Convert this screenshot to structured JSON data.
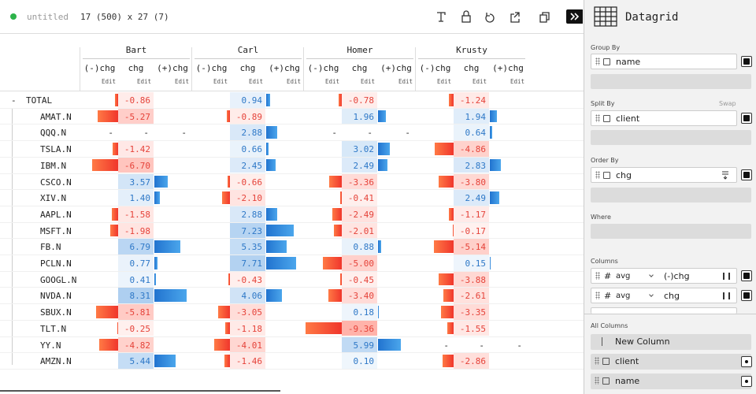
{
  "toolbar": {
    "status": "untitled",
    "dimensions": "17 (500) x 27 (7)"
  },
  "grid": {
    "groups": [
      "Bart",
      "Carl",
      "Homer",
      "Krusty"
    ],
    "subcolumns": [
      "(-)chg",
      "chg",
      "(+)chg"
    ],
    "edit_label": "Edit",
    "collapse_marker": "-",
    "empty_cell": "-",
    "rows": [
      {
        "name": "TOTAL",
        "values": [
          "-0.86",
          "0.94",
          "-0.78",
          "-1.24"
        ]
      },
      {
        "name": "AMAT.N",
        "values": [
          "-5.27",
          "-0.89",
          "1.96",
          "1.94"
        ]
      },
      {
        "name": "QQQ.N",
        "values": [
          null,
          "2.88",
          null,
          "0.64"
        ]
      },
      {
        "name": "TSLA.N",
        "values": [
          "-1.42",
          "0.66",
          "3.02",
          "-4.86"
        ]
      },
      {
        "name": "IBM.N",
        "values": [
          "-6.70",
          "2.45",
          "2.49",
          "2.83"
        ]
      },
      {
        "name": "CSCO.N",
        "values": [
          "3.57",
          "-0.66",
          "-3.36",
          "-3.80"
        ]
      },
      {
        "name": "XIV.N",
        "values": [
          "1.40",
          "-2.10",
          "-0.41",
          "2.49"
        ]
      },
      {
        "name": "AAPL.N",
        "values": [
          "-1.58",
          "2.88",
          "-2.49",
          "-1.17"
        ]
      },
      {
        "name": "MSFT.N",
        "values": [
          "-1.98",
          "7.23",
          "-2.01",
          "-0.17"
        ]
      },
      {
        "name": "FB.N",
        "values": [
          "6.79",
          "5.35",
          "0.88",
          "-5.14"
        ]
      },
      {
        "name": "PCLN.N",
        "values": [
          "0.77",
          "7.71",
          "-5.00",
          "0.15"
        ]
      },
      {
        "name": "GOOGL.N",
        "values": [
          "0.41",
          "-0.43",
          "-0.45",
          "-3.88"
        ]
      },
      {
        "name": "NVDA.N",
        "values": [
          "8.31",
          "4.06",
          "-3.40",
          "-2.61"
        ]
      },
      {
        "name": "SBUX.N",
        "values": [
          "-5.81",
          "-3.05",
          "0.18",
          "-3.35"
        ]
      },
      {
        "name": "TLT.N",
        "values": [
          "-0.25",
          "-1.18",
          "-9.36",
          "-1.55"
        ]
      },
      {
        "name": "YY.N",
        "values": [
          "-4.82",
          "-4.01",
          "5.99",
          null
        ]
      },
      {
        "name": "AMZN.N",
        "values": [
          "5.44",
          "-1.46",
          "0.10",
          "-2.86"
        ]
      }
    ]
  },
  "sidebar": {
    "title": "Datagrid",
    "group_by": {
      "label": "Group By",
      "items": [
        "name"
      ]
    },
    "split_by": {
      "label": "Split By",
      "action": "Swap",
      "items": [
        "client"
      ]
    },
    "order_by": {
      "label": "Order By",
      "items": [
        "chg"
      ]
    },
    "where": {
      "label": "Where"
    },
    "columns": {
      "label": "Columns",
      "items": [
        {
          "type": "#",
          "aggregate": "avg",
          "name": "(-)chg"
        },
        {
          "type": "#",
          "aggregate": "avg",
          "name": "chg"
        }
      ]
    },
    "all_columns": {
      "label": "All Columns",
      "new_column": "New Column",
      "items": [
        "client",
        "name"
      ]
    }
  }
}
